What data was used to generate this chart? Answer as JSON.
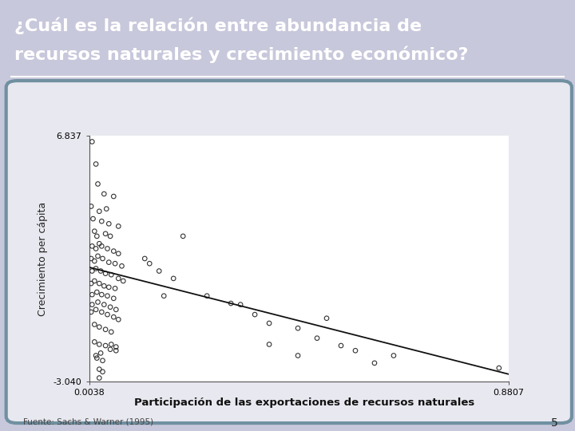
{
  "title_line1": "¿Cuál es la relación entre abundancia de",
  "title_line2": "recursos naturales y crecimiento económico?",
  "title_bg_color": "#7878c8",
  "title_text_color": "#ffffff",
  "title_rule_color": "#ffffff",
  "xlabel": "Participación de las exportaciones de recursos naturales",
  "ylabel": "Crecimiento per cápita",
  "source": "Fuente: Sachs & Warner (1995)",
  "page_number": "5",
  "xmin": 0.0038,
  "xmax": 0.8807,
  "ymin": -3.04,
  "ymax": 6.837,
  "xtick_left": "0.0038",
  "xtick_right": "0.8807",
  "ytick_top": "6.837",
  "ytick_bottom": "-3.040",
  "outer_bg_color": "#c8c8dc",
  "panel_bg_color": "#e8e8f0",
  "panel_border_color": "#7090a0",
  "plot_bg_color": "#ffffff",
  "scatter_facecolor": "none",
  "scatter_edgecolor": "#333333",
  "line_color": "#111111",
  "scatter_points": [
    [
      0.01,
      6.6
    ],
    [
      0.018,
      5.7
    ],
    [
      0.022,
      4.9
    ],
    [
      0.035,
      4.5
    ],
    [
      0.055,
      4.4
    ],
    [
      0.008,
      4.0
    ],
    [
      0.025,
      3.8
    ],
    [
      0.04,
      3.9
    ],
    [
      0.012,
      3.5
    ],
    [
      0.03,
      3.4
    ],
    [
      0.045,
      3.3
    ],
    [
      0.065,
      3.2
    ],
    [
      0.015,
      3.0
    ],
    [
      0.02,
      2.8
    ],
    [
      0.038,
      2.9
    ],
    [
      0.048,
      2.8
    ],
    [
      0.2,
      2.8
    ],
    [
      0.01,
      2.4
    ],
    [
      0.018,
      2.3
    ],
    [
      0.025,
      2.5
    ],
    [
      0.03,
      2.4
    ],
    [
      0.042,
      2.3
    ],
    [
      0.055,
      2.2
    ],
    [
      0.065,
      2.1
    ],
    [
      0.008,
      1.9
    ],
    [
      0.015,
      1.8
    ],
    [
      0.022,
      2.0
    ],
    [
      0.032,
      1.9
    ],
    [
      0.045,
      1.75
    ],
    [
      0.058,
      1.7
    ],
    [
      0.072,
      1.6
    ],
    [
      0.01,
      1.4
    ],
    [
      0.018,
      1.5
    ],
    [
      0.028,
      1.4
    ],
    [
      0.038,
      1.3
    ],
    [
      0.05,
      1.25
    ],
    [
      0.065,
      1.1
    ],
    [
      0.075,
      1.0
    ],
    [
      0.008,
      0.9
    ],
    [
      0.015,
      1.0
    ],
    [
      0.025,
      0.9
    ],
    [
      0.035,
      0.8
    ],
    [
      0.045,
      0.75
    ],
    [
      0.058,
      0.7
    ],
    [
      0.01,
      0.45
    ],
    [
      0.02,
      0.55
    ],
    [
      0.03,
      0.45
    ],
    [
      0.042,
      0.4
    ],
    [
      0.055,
      0.3
    ],
    [
      0.01,
      0.05
    ],
    [
      0.022,
      0.15
    ],
    [
      0.035,
      0.05
    ],
    [
      0.048,
      -0.05
    ],
    [
      0.06,
      -0.15
    ],
    [
      0.008,
      -0.25
    ],
    [
      0.018,
      -0.15
    ],
    [
      0.03,
      -0.25
    ],
    [
      0.042,
      -0.35
    ],
    [
      0.055,
      -0.45
    ],
    [
      0.065,
      -0.55
    ],
    [
      0.015,
      -0.75
    ],
    [
      0.025,
      -0.85
    ],
    [
      0.038,
      -0.95
    ],
    [
      0.05,
      -1.05
    ],
    [
      0.015,
      -1.45
    ],
    [
      0.025,
      -1.55
    ],
    [
      0.038,
      -1.6
    ],
    [
      0.05,
      -1.55
    ],
    [
      0.06,
      -1.65
    ],
    [
      0.048,
      -1.75
    ],
    [
      0.06,
      -1.8
    ],
    [
      0.018,
      -2.0
    ],
    [
      0.028,
      -1.9
    ],
    [
      0.02,
      -2.1
    ],
    [
      0.032,
      -2.2
    ],
    [
      0.025,
      -2.55
    ],
    [
      0.032,
      -2.65
    ],
    [
      0.025,
      -2.9
    ],
    [
      0.12,
      1.9
    ],
    [
      0.15,
      1.4
    ],
    [
      0.16,
      0.4
    ],
    [
      0.25,
      0.4
    ],
    [
      0.3,
      0.1
    ],
    [
      0.35,
      -0.35
    ],
    [
      0.38,
      -0.7
    ],
    [
      0.44,
      -0.9
    ],
    [
      0.48,
      -1.3
    ],
    [
      0.53,
      -1.6
    ],
    [
      0.56,
      -1.8
    ],
    [
      0.64,
      -2.0
    ],
    [
      0.86,
      -2.5
    ],
    [
      0.5,
      -0.5
    ],
    [
      0.6,
      -2.3
    ],
    [
      0.13,
      1.7
    ],
    [
      0.18,
      1.1
    ],
    [
      0.32,
      0.05
    ],
    [
      0.38,
      -1.55
    ],
    [
      0.44,
      -2.0
    ]
  ],
  "line_x": [
    0.0038,
    0.8807
  ],
  "line_y": [
    1.55,
    -2.75
  ]
}
